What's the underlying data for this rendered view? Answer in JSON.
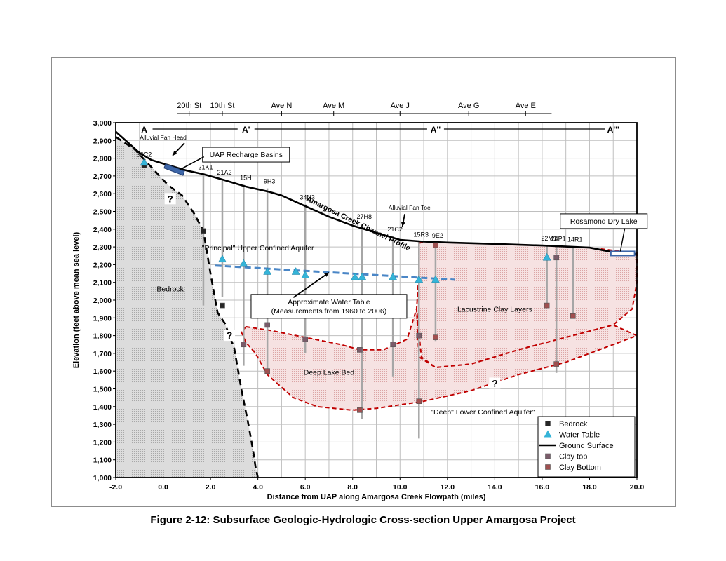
{
  "caption": "Figure 2-12: Subsurface Geologic-Hydrologic Cross-section Upper Amargosa Project",
  "chart_data": {
    "type": "scatter",
    "xlabel": "Distance from UAP along Amargosa Creek Flowpath (miles)",
    "ylabel": "Elevation (feet above mean sea level)",
    "xlim": [
      -2.0,
      20.0
    ],
    "ylim": [
      1000,
      3000
    ],
    "x_ticks": [
      -2,
      0,
      2,
      4,
      6,
      8,
      10,
      12,
      14,
      16,
      18,
      20
    ],
    "x_tick_labels": [
      "-2.0",
      "0.0",
      "2.0",
      "4.0",
      "6.0",
      "8.0",
      "10.0",
      "12.0",
      "14.0",
      "16.0",
      "18.0",
      "20.0"
    ],
    "y_ticks": [
      1000,
      1100,
      1200,
      1300,
      1400,
      1500,
      1600,
      1700,
      1800,
      1900,
      2000,
      2100,
      2200,
      2300,
      2400,
      2500,
      2600,
      2700,
      2800,
      2900,
      3000
    ],
    "y_tick_labels": [
      "1,000",
      "1,100",
      "1,200",
      "1,300",
      "1,400",
      "1,500",
      "1,600",
      "1,700",
      "1,800",
      "1,900",
      "2,000",
      "2,100",
      "2,200",
      "2,300",
      "2,400",
      "2,500",
      "2,600",
      "2,700",
      "2,800",
      "2,900",
      "3,000"
    ],
    "grid": true,
    "streets": [
      {
        "name": "20th St",
        "x": 1.1
      },
      {
        "name": "10th St",
        "x": 2.5
      },
      {
        "name": "Ave N",
        "x": 5.0
      },
      {
        "name": "Ave M",
        "x": 7.2
      },
      {
        "name": "Ave J",
        "x": 10.0
      },
      {
        "name": "Ave G",
        "x": 12.9
      },
      {
        "name": "Ave E",
        "x": 15.3
      }
    ],
    "section_points": [
      {
        "label": "A",
        "x": -0.8
      },
      {
        "label": "A'",
        "x": 3.5
      },
      {
        "label": "A''",
        "x": 11.5
      },
      {
        "label": "A'''",
        "x": 19.0
      }
    ],
    "ground_surface": {
      "name": "Ground Surface",
      "x": [
        -2.0,
        -1.5,
        -1.0,
        -0.5,
        0.0,
        0.5,
        1.0,
        1.7,
        2.5,
        3.5,
        4.5,
        5.0,
        6.0,
        7.0,
        8.0,
        8.5,
        9.0,
        10.0,
        11.0,
        12.0,
        14.0,
        16.0,
        18.0,
        19.0,
        20.0
      ],
      "y": [
        2950,
        2890,
        2830,
        2790,
        2770,
        2750,
        2730,
        2710,
        2680,
        2640,
        2610,
        2590,
        2530,
        2470,
        2420,
        2400,
        2380,
        2340,
        2330,
        2325,
        2317,
        2308,
        2296,
        2270,
        2260
      ]
    },
    "bedrock_boundary": {
      "x": [
        -2.0,
        -1.2,
        -0.5,
        0.2,
        0.8,
        1.3,
        1.7,
        2.0,
        2.3,
        2.6,
        3.0,
        3.3,
        3.6,
        3.8,
        3.9,
        4.0
      ],
      "y": [
        2920,
        2850,
        2750,
        2650,
        2590,
        2490,
        2390,
        2150,
        1930,
        1870,
        1730,
        1500,
        1300,
        1150,
        1060,
        1000
      ]
    },
    "clay_zone_upper": {
      "name": "Lacustrine Clay Layers",
      "x": [
        10.8,
        11.0,
        12.0,
        14.0,
        16.0,
        18.0,
        20.0,
        20.0,
        19.8,
        19.0,
        17.0,
        15.0,
        13.0,
        11.5,
        10.9,
        10.7,
        10.8
      ],
      "y": [
        2320,
        2330,
        2325,
        2317,
        2308,
        2296,
        2265,
        2100,
        1950,
        1860,
        1790,
        1720,
        1640,
        1620,
        1680,
        1950,
        2150
      ]
    },
    "clay_zone_deep": {
      "name": "Deep Lake Bed",
      "x": [
        3.5,
        4.5,
        6.0,
        7.5,
        8.3,
        9.3,
        10.3,
        10.7,
        10.8,
        11.5,
        13.0,
        15.0,
        17.0,
        19.0,
        20.0,
        19.0,
        17.0,
        15.0,
        13.0,
        11.0,
        9.0,
        8.0,
        6.5,
        5.5,
        4.4,
        3.9,
        3.5,
        3.3
      ],
      "y": [
        1850,
        1830,
        1790,
        1750,
        1720,
        1720,
        1780,
        1950,
        1680,
        1620,
        1640,
        1720,
        1790,
        1860,
        1800,
        1750,
        1650,
        1580,
        1490,
        1430,
        1390,
        1380,
        1400,
        1450,
        1580,
        1700,
        1760,
        1820
      ]
    },
    "water_table_line": {
      "name": "Approximate Water Table",
      "x": [
        2.2,
        12.3
      ],
      "y": [
        2195,
        2115
      ]
    },
    "wells": [
      {
        "label": "30C2",
        "x": -0.8,
        "top": 2780,
        "bottom": 2750
      },
      {
        "label": "21K1",
        "x": 1.7,
        "top": 2710,
        "bottom": 1970
      },
      {
        "label": "21A2",
        "x": 2.5,
        "top": 2680,
        "bottom": 2020
      },
      {
        "label": "15H",
        "x": 3.4,
        "top": 2650,
        "bottom": 1630
      },
      {
        "label": "9H3",
        "x": 4.4,
        "top": 2630,
        "bottom": 1590
      },
      {
        "label": "34N3",
        "x": 6.0,
        "top": 2540,
        "bottom": 1700
      },
      {
        "label": "27H8",
        "x": 8.4,
        "top": 2430,
        "bottom": 1330
      },
      {
        "label": "21C2",
        "x": 9.7,
        "top": 2360,
        "bottom": 1570
      },
      {
        "label": "15R3",
        "x": 10.8,
        "top": 2330,
        "bottom": 1220
      },
      {
        "label": "9E2",
        "x": 11.5,
        "top": 2325,
        "bottom": 1770
      },
      {
        "label": "22M1",
        "x": 16.2,
        "top": 2308,
        "bottom": 1960
      },
      {
        "label": "24P1",
        "x": 16.6,
        "top": 2306,
        "bottom": 1590
      },
      {
        "label": "14R1",
        "x": 17.3,
        "top": 2302,
        "bottom": 1900
      }
    ],
    "bedrock_points": {
      "name": "Bedrock",
      "x": [
        -0.8,
        1.7,
        2.5
      ],
      "y": [
        2760,
        2390,
        1970
      ]
    },
    "water_table_points": {
      "name": "Water Table",
      "x": [
        -0.8,
        2.5,
        3.4,
        4.4,
        5.6,
        6.0,
        8.1,
        8.4,
        9.7,
        10.8,
        11.5,
        16.2
      ],
      "y": [
        2775,
        2230,
        2205,
        2160,
        2160,
        2140,
        2130,
        2130,
        2130,
        2115,
        2115,
        2240
      ]
    },
    "clay_top_points": {
      "name": "Clay top",
      "x": [
        3.4,
        4.4,
        6.0,
        8.3,
        9.7,
        10.8,
        16.6
      ],
      "y": [
        1750,
        1860,
        1780,
        1720,
        1750,
        1800,
        2240
      ]
    },
    "clay_bottom_points": {
      "name": "Clay Bottom",
      "x": [
        4.4,
        8.3,
        10.8,
        11.5,
        11.5,
        16.2,
        16.6,
        17.3
      ],
      "y": [
        1600,
        1380,
        1430,
        1790,
        2310,
        1970,
        1640,
        1910
      ]
    },
    "recharge_basins": {
      "name": "UAP Recharge Basins",
      "x": [
        0.1,
        0.9
      ],
      "y": [
        2760,
        2735
      ]
    },
    "dry_lake": {
      "name": "Rosamond Dry Lake",
      "x": [
        18.9,
        19.9
      ],
      "y": [
        2275,
        2255
      ]
    },
    "annotations": [
      {
        "text": "Alluvial Fan Head",
        "x": 0.0,
        "y": 2905
      },
      {
        "text": "Amargosa Creek Channel Profile",
        "x": 8.2,
        "y": 2420,
        "rotate": 26
      },
      {
        "text": "Alluvial Fan Toe",
        "x": 10.4,
        "y": 2510
      },
      {
        "text": "\"Principal\" Upper Confined Aquifer",
        "x": 4.0,
        "y": 2280
      },
      {
        "text": "Bedrock",
        "x": 0.3,
        "y": 2050
      },
      {
        "text": "Lacustrine Clay Layers",
        "x": 14.0,
        "y": 1935
      },
      {
        "text": "Deep  Lake Bed",
        "x": 7.0,
        "y": 1580
      },
      {
        "text": "\"Deep\" Lower Confined Aquifer\"",
        "x": 13.5,
        "y": 1355
      }
    ],
    "question_marks": [
      {
        "text": "?",
        "x": 0.3,
        "y": 2560
      },
      {
        "text": "?",
        "x": 2.8,
        "y": 1790
      },
      {
        "text": "?",
        "x": 14.0,
        "y": 1520
      }
    ],
    "callouts": [
      {
        "text": "UAP Recharge Basins",
        "x": 3.5,
        "y": 2820
      },
      {
        "text": "Rosamond Dry Lake",
        "x": 18.6,
        "y": 2445
      }
    ],
    "water_table_callout": [
      "Approximate Water Table",
      "(Measurements from 1960 to 2006)"
    ],
    "legend": {
      "position": "bottom-right",
      "entries": [
        {
          "name": "Bedrock",
          "marker": "square",
          "color": "#262626"
        },
        {
          "name": "Water Table",
          "marker": "triangle",
          "color": "#35b4d8"
        },
        {
          "name": "Ground Surface",
          "marker": "line",
          "color": "#000000"
        },
        {
          "name": "Clay top",
          "marker": "square",
          "color": "#7a5c6a"
        },
        {
          "name": "Clay Bottom",
          "marker": "square",
          "color": "#a05050"
        }
      ]
    },
    "colors": {
      "bedrock_fill": "#d9d9d9",
      "clay_fill": "#f3dcdc",
      "clay_edge": "#c00000",
      "water_line": "#4a86c6",
      "well": "#a6a6a6",
      "basin": "#3d66a8"
    }
  }
}
